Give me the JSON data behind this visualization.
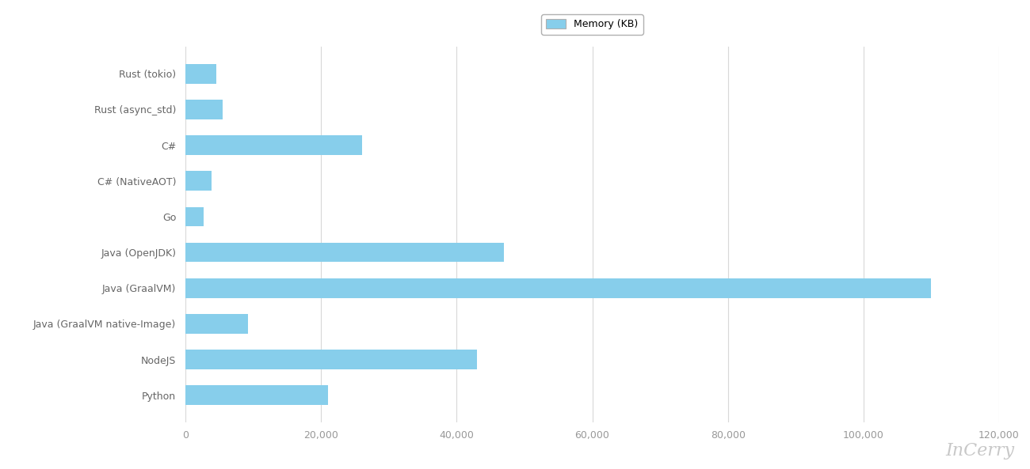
{
  "categories": [
    "Rust (tokio)",
    "Rust (async_std)",
    "C#",
    "C# (NativeAOT)",
    "Go",
    "Java (OpenJDK)",
    "Java (GraalVM)",
    "Java (GraalVM native-Image)",
    "NodeJS",
    "Python"
  ],
  "values": [
    4600,
    5500,
    26000,
    3800,
    2700,
    47000,
    110000,
    9200,
    43000,
    21000
  ],
  "bar_color": "#87CEEB",
  "bar_edgecolor": "#87CEEB",
  "legend_label": "Memory (KB)",
  "legend_facecolor": "#87CEEB",
  "legend_edgecolor": "#b0b0b0",
  "xlim": [
    0,
    120000
  ],
  "xticks": [
    0,
    20000,
    40000,
    60000,
    80000,
    100000,
    120000
  ],
  "xtick_labels": [
    "0",
    "20,000",
    "40,000",
    "60,000",
    "80,000",
    "100,000",
    "120,000"
  ],
  "background_color": "#ffffff",
  "plot_bg_color": "#ffffff",
  "grid_color": "#d8d8d8",
  "tick_label_color": "#999999",
  "ytick_label_color": "#666666",
  "watermark": "InCerry",
  "watermark_color": "#c8c8c8",
  "watermark_fontsize": 16,
  "tick_fontsize": 9,
  "bar_height": 0.55
}
